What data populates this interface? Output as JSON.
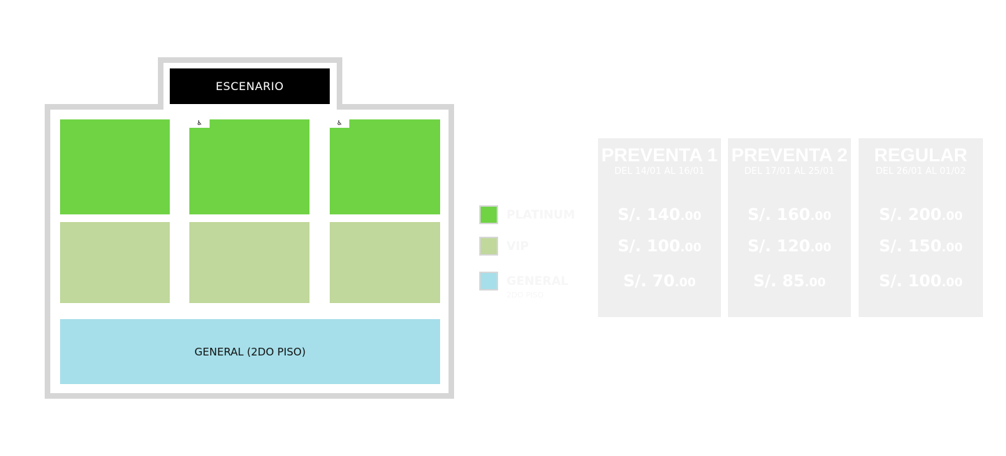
{
  "map": {
    "stage_label": "ESCENARIO",
    "general_label": "GENERAL (2DO PISO)",
    "accessibility_icon": "wheelchair-icon",
    "colors": {
      "platinum": "#6fd344",
      "vip": "#c0d89b",
      "general": "#a6dfea",
      "outline": "#d6d6d6",
      "stage": "#000000"
    }
  },
  "legend": [
    {
      "label": "PLATINUM",
      "sub": ""
    },
    {
      "label": "VIP",
      "sub": ""
    },
    {
      "label": "GENERAL",
      "sub": "2DO PISO"
    }
  ],
  "price_cards": [
    {
      "title": "PREVENTA 1",
      "dates": "DEL 14/01 AL 16/01",
      "prices": [
        {
          "cur": "S/.",
          "int": "140",
          "dec": ".00"
        },
        {
          "cur": "S/.",
          "int": "100",
          "dec": ".00"
        },
        {
          "cur": "S/.",
          "int": "70",
          "dec": ".00"
        }
      ]
    },
    {
      "title": "PREVENTA 2",
      "dates": "DEL 17/01 AL 25/01",
      "prices": [
        {
          "cur": "S/.",
          "int": "160",
          "dec": ".00"
        },
        {
          "cur": "S/.",
          "int": "120",
          "dec": ".00"
        },
        {
          "cur": "S/.",
          "int": "85",
          "dec": ".00"
        }
      ]
    },
    {
      "title": "REGULAR",
      "dates": "DEL 26/01 AL 01/02",
      "prices": [
        {
          "cur": "S/.",
          "int": "200",
          "dec": ".00"
        },
        {
          "cur": "S/.",
          "int": "150",
          "dec": ".00"
        },
        {
          "cur": "S/.",
          "int": "100",
          "dec": ".00"
        }
      ]
    }
  ]
}
